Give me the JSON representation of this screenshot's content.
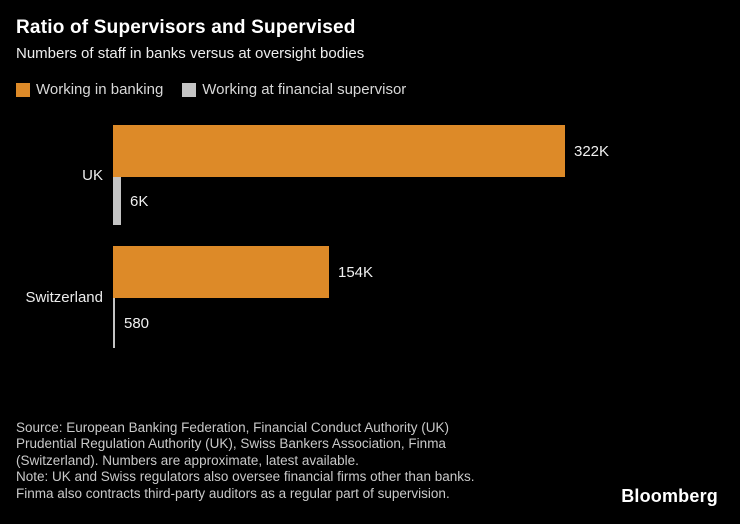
{
  "header": {
    "title": "Ratio of Supervisors and Supervised",
    "subtitle": "Numbers of staff in banks versus at oversight bodies"
  },
  "legend": {
    "items": [
      {
        "label": "Working in banking",
        "color": "#dd8a28"
      },
      {
        "label": "Working at financial supervisor",
        "color": "#c4c4c4"
      }
    ]
  },
  "chart_data": {
    "type": "bar",
    "orientation": "horizontal",
    "categories": [
      "UK",
      "Switzerland"
    ],
    "series": [
      {
        "name": "Working in banking",
        "color": "#dd8a28",
        "values": [
          322000,
          154000
        ],
        "labels": [
          "322K",
          "154K"
        ]
      },
      {
        "name": "Working at financial supervisor",
        "color": "#c4c4c4",
        "values": [
          6000,
          580
        ],
        "labels": [
          "6K",
          "580"
        ]
      }
    ],
    "xlim": [
      0,
      322000
    ],
    "grid": false,
    "legend_position": "top",
    "value_labels": true
  },
  "footer": {
    "lines": [
      "Source: European Banking Federation, Financial Conduct Authority (UK)",
      "Prudential Regulation Authority (UK), Swiss Bankers Association, Finma",
      "(Switzerland). Numbers are approximate, latest available.",
      "Note: UK and Swiss regulators also oversee financial firms other than banks.",
      "Finma also contracts third-party auditors as a regular part of supervision."
    ]
  },
  "branding": {
    "logo_text": "Bloomberg"
  },
  "colors": {
    "background": "#000000",
    "banking_orange": "#dd8a28",
    "supervisor_gray": "#c4c4c4"
  }
}
